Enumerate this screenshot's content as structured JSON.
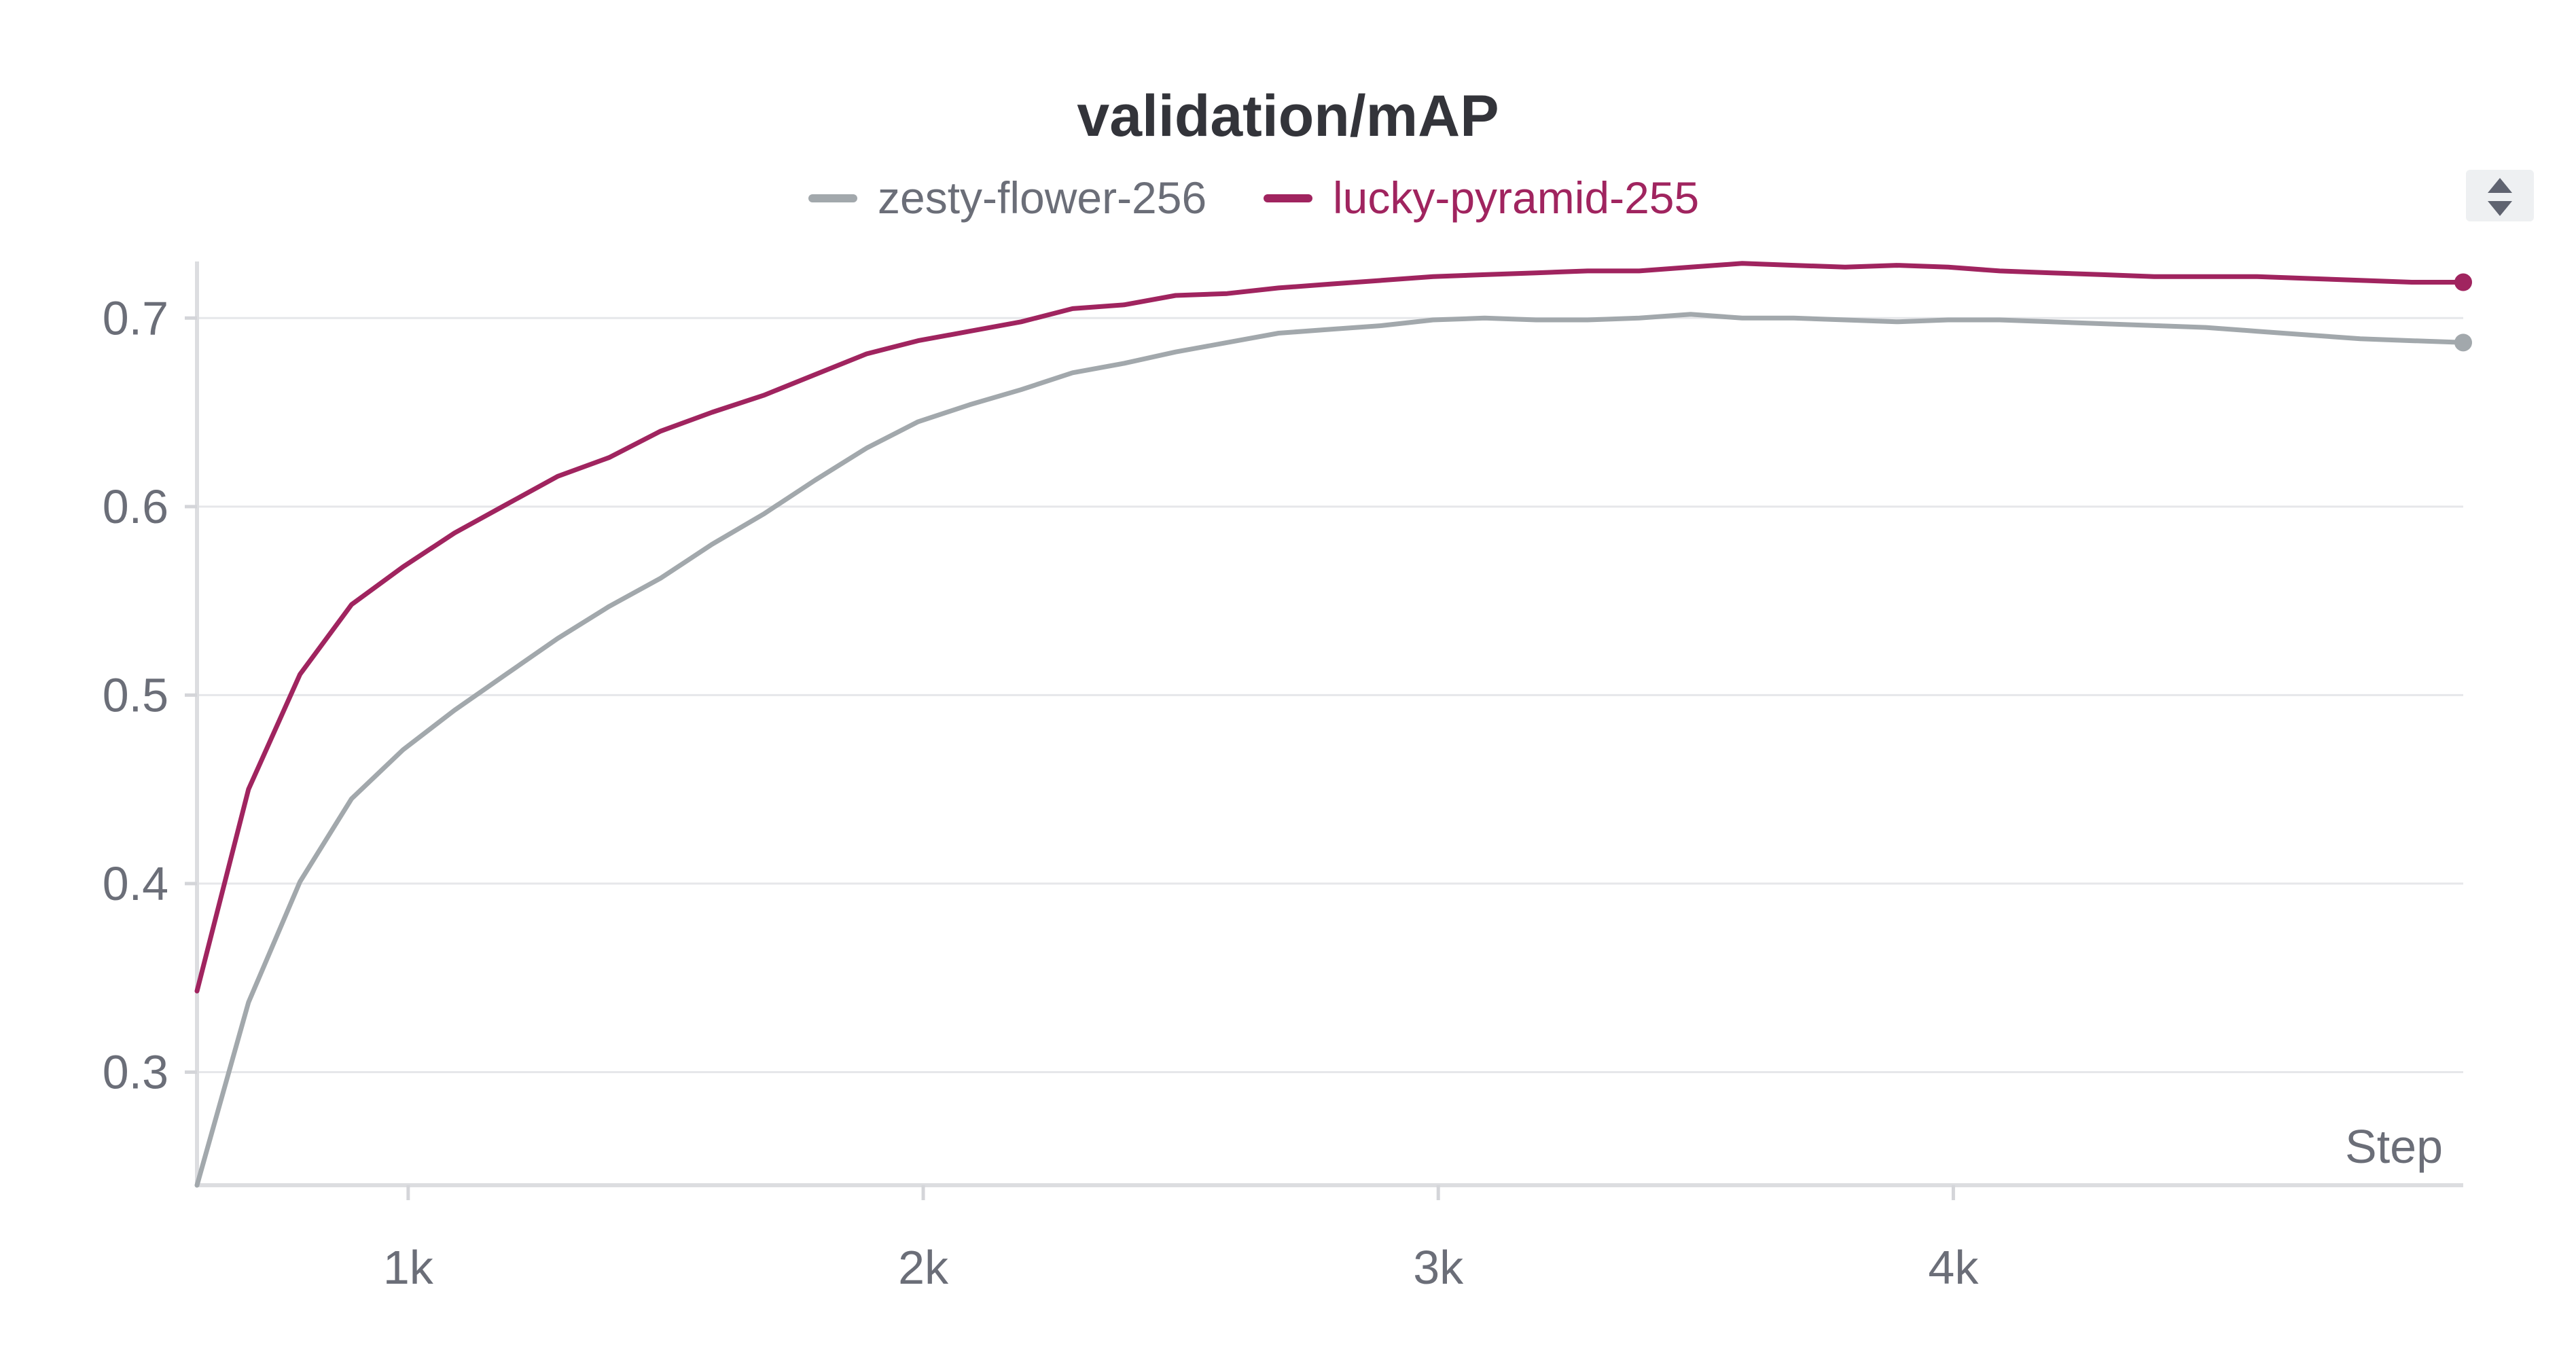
{
  "chart_data": {
    "type": "line",
    "title": "validation/mAP",
    "xlabel": "Step",
    "ylabel": "",
    "xlim": [
      590,
      4990
    ],
    "ylim": [
      0.24,
      0.73
    ],
    "x_ticks": [
      1000,
      2000,
      3000,
      4000
    ],
    "x_tick_labels": [
      "1k",
      "2k",
      "3k",
      "4k"
    ],
    "y_ticks": [
      0.3,
      0.4,
      0.5,
      0.6,
      0.7
    ],
    "y_tick_labels": [
      "0.3",
      "0.4",
      "0.5",
      "0.6",
      "0.7"
    ],
    "grid": true,
    "legend_position": "top-center",
    "series": [
      {
        "name": "zesty-flower-256",
        "color": "#a2a8ac",
        "x": [
          590,
          690,
          790,
          890,
          990,
          1090,
          1190,
          1290,
          1390,
          1490,
          1590,
          1690,
          1790,
          1890,
          1990,
          2090,
          2190,
          2290,
          2390,
          2490,
          2590,
          2690,
          2790,
          2890,
          2990,
          3090,
          3190,
          3290,
          3390,
          3490,
          3590,
          3690,
          3790,
          3890,
          3990,
          4090,
          4190,
          4290,
          4390,
          4490,
          4590,
          4690,
          4790,
          4890,
          4990
        ],
        "y": [
          0.24,
          0.337,
          0.401,
          0.445,
          0.471,
          0.492,
          0.511,
          0.53,
          0.547,
          0.562,
          0.58,
          0.596,
          0.614,
          0.631,
          0.645,
          0.654,
          0.662,
          0.671,
          0.676,
          0.682,
          0.687,
          0.692,
          0.694,
          0.696,
          0.699,
          0.7,
          0.699,
          0.699,
          0.7,
          0.702,
          0.7,
          0.7,
          0.699,
          0.698,
          0.699,
          0.699,
          0.698,
          0.697,
          0.696,
          0.695,
          0.693,
          0.691,
          0.689,
          0.688,
          0.687
        ]
      },
      {
        "name": "lucky-pyramid-255",
        "color": "#a0245f",
        "x": [
          590,
          690,
          790,
          890,
          990,
          1090,
          1190,
          1290,
          1390,
          1490,
          1590,
          1690,
          1790,
          1890,
          1990,
          2090,
          2190,
          2290,
          2390,
          2490,
          2590,
          2690,
          2790,
          2890,
          2990,
          3090,
          3190,
          3290,
          3390,
          3490,
          3590,
          3690,
          3790,
          3890,
          3990,
          4090,
          4190,
          4290,
          4390,
          4490,
          4590,
          4690,
          4790,
          4890,
          4990
        ],
        "y": [
          0.343,
          0.45,
          0.511,
          0.548,
          0.568,
          0.586,
          0.601,
          0.616,
          0.626,
          0.64,
          0.65,
          0.659,
          0.67,
          0.681,
          0.688,
          0.693,
          0.698,
          0.705,
          0.707,
          0.712,
          0.713,
          0.716,
          0.718,
          0.72,
          0.722,
          0.723,
          0.724,
          0.725,
          0.725,
          0.727,
          0.729,
          0.728,
          0.727,
          0.728,
          0.727,
          0.725,
          0.724,
          0.723,
          0.722,
          0.722,
          0.722,
          0.721,
          0.72,
          0.719,
          0.719
        ]
      }
    ]
  }
}
